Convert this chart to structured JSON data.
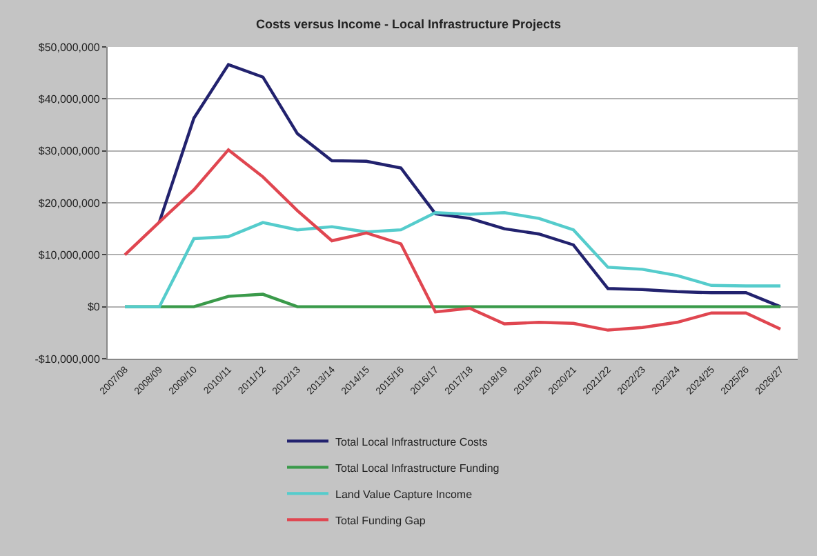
{
  "chart_data": {
    "type": "line",
    "title": "Costs versus Income - Local Infrastructure Projects",
    "categories": [
      "2007/08",
      "2008/09",
      "2009/10",
      "2010/11",
      "2011/12",
      "2012/13",
      "2013/14",
      "2014/15",
      "2015/16",
      "2016/17",
      "2017/18",
      "2018/19",
      "2019/20",
      "2020/21",
      "2021/22",
      "2022/23",
      "2023/24",
      "2024/25",
      "2025/26",
      "2026/27"
    ],
    "series": [
      {
        "name": "Total Local Infrastructure Costs",
        "color": "#22226e",
        "values": [
          null,
          16300000,
          36300000,
          46600000,
          44200000,
          33300000,
          28100000,
          28000000,
          26700000,
          17900000,
          17000000,
          15000000,
          14000000,
          11900000,
          3500000,
          3300000,
          2900000,
          2700000,
          2700000,
          0
        ]
      },
      {
        "name": "Total Local Infrastructure Funding",
        "color": "#3a9a4a",
        "values": [
          0,
          0,
          0,
          2000000,
          2400000,
          0,
          0,
          0,
          0,
          0,
          0,
          0,
          0,
          0,
          0,
          0,
          0,
          0,
          0,
          0
        ]
      },
      {
        "name": "Land Value Capture Income",
        "color": "#55cccc",
        "values": [
          0,
          0,
          13100000,
          13500000,
          16200000,
          14800000,
          15400000,
          14400000,
          14800000,
          18100000,
          17800000,
          18100000,
          17000000,
          14800000,
          7600000,
          7200000,
          6000000,
          4100000,
          4000000,
          4000000
        ]
      },
      {
        "name": "Total Funding Gap",
        "color": "#e04650",
        "values": [
          10000000,
          16300000,
          22500000,
          30200000,
          25000000,
          18500000,
          12700000,
          14200000,
          12100000,
          -1000000,
          -300000,
          -3300000,
          -3000000,
          -3200000,
          -4500000,
          -4000000,
          -3000000,
          -1200000,
          -1200000,
          -4300000
        ]
      }
    ],
    "ylim": [
      -10000000,
      50000000
    ],
    "yticks": [
      {
        "value": -10000000,
        "label": "-$10,000,000"
      },
      {
        "value": 0,
        "label": "$0"
      },
      {
        "value": 10000000,
        "label": "$10,000,000"
      },
      {
        "value": 20000000,
        "label": "$20,000,000"
      },
      {
        "value": 30000000,
        "label": "$30,000,000"
      },
      {
        "value": 40000000,
        "label": "$40,000,000"
      },
      {
        "value": 50000000,
        "label": "$50,000,000"
      }
    ],
    "grid": "y",
    "legend": "bottom",
    "marker": "none",
    "line_style": "solid"
  }
}
